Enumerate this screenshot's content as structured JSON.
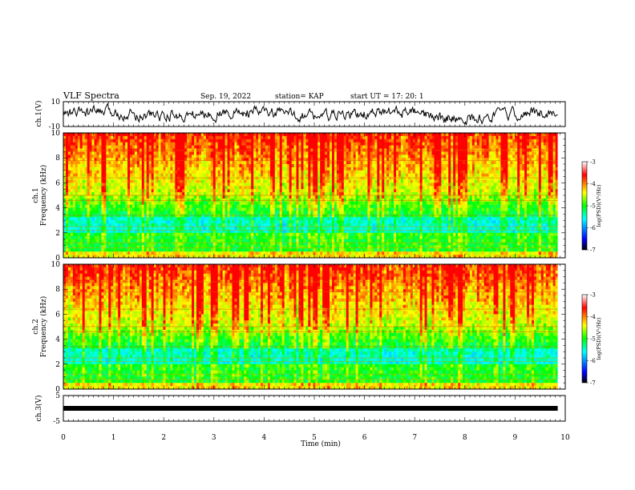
{
  "header": {
    "title": "VLF Spectra",
    "date": "Sep. 19, 2022",
    "station": "station= KAP",
    "start": "start  UT  =   17: 20: 1"
  },
  "chart_data": {
    "type": "heatmap",
    "x_axis": {
      "label": "Time  (min)",
      "range": [
        0,
        10
      ],
      "ticks": [
        "0",
        "1",
        "2",
        "3",
        "4",
        "5",
        "6",
        "7",
        "8",
        "9",
        "10"
      ]
    },
    "panels": [
      {
        "name": "ch.1 waveform",
        "ylabel": "ch.1(V)",
        "yrange": [
          -10,
          10
        ],
        "ticks": [
          "10",
          "-10"
        ],
        "type": "line"
      },
      {
        "name": "ch.1 spectrogram",
        "ylabel": "ch.1\nFrequency (kHz)",
        "yrange": [
          0,
          10
        ],
        "ticks": [
          "0",
          "2",
          "4",
          "6",
          "8",
          "10"
        ],
        "type": "heatmap"
      },
      {
        "name": "ch.2 spectrogram",
        "ylabel": "ch.2\nFrequency (kHz)",
        "yrange": [
          0,
          10
        ],
        "ticks": [
          "0",
          "2",
          "4",
          "6",
          "8",
          "10"
        ],
        "type": "heatmap"
      },
      {
        "name": "ch.3 waveform",
        "ylabel": "ch.3(V)",
        "yrange": [
          -5,
          5
        ],
        "ticks": [
          "5",
          "-5"
        ],
        "type": "line"
      }
    ],
    "colorbar": {
      "label": "log(PSD)(V²/Hz)",
      "range": [
        -7,
        -3
      ],
      "ticks": [
        "-3",
        "-4",
        "-5",
        "-6",
        "-7"
      ],
      "colors": [
        "#000000",
        "#0000ff",
        "#00ffff",
        "#00ff00",
        "#ffff00",
        "#ff0000",
        "#ffffff"
      ]
    },
    "data_end_min": 9.85
  }
}
